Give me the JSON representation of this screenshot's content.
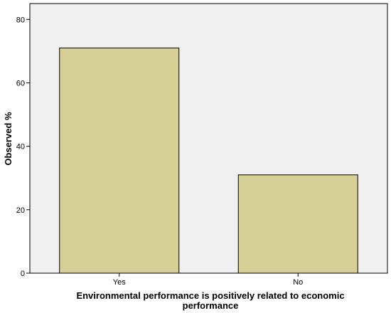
{
  "chart_data": {
    "type": "bar",
    "categories": [
      "Yes",
      "No"
    ],
    "values": [
      71,
      31
    ],
    "title": "",
    "xlabel": [
      "Environmental performance is positively related to economic",
      "performance"
    ],
    "ylabel": "Observed %",
    "ylim": [
      0,
      85
    ],
    "yticks": [
      "0",
      "20",
      "40",
      "60",
      "80"
    ],
    "ytick_values": [
      0,
      20,
      40,
      60,
      80
    ],
    "grid": false,
    "colors": {
      "plot_background": "#f0f0f0",
      "bar_fill": "#d6d096",
      "bar_stroke": "#000000",
      "axis": "#000000"
    }
  }
}
